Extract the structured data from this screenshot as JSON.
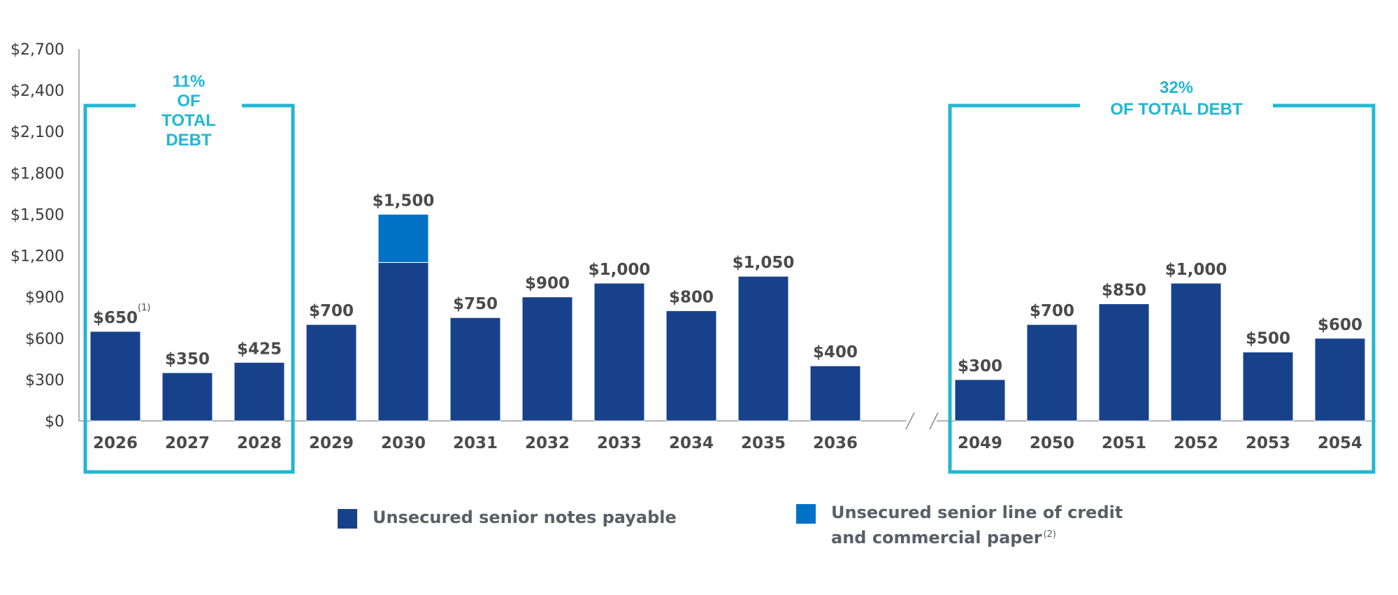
{
  "chart_data": {
    "type": "bar",
    "stacked": true,
    "currency": "$",
    "ylim": [
      0,
      2700
    ],
    "yticks": [
      0,
      300,
      600,
      900,
      1200,
      1500,
      1800,
      2100,
      2400,
      2700
    ],
    "ytick_labels": [
      "$0",
      "$300",
      "$600",
      "$900",
      "$1,200",
      "$1,500",
      "$1,800",
      "$2,100",
      "$2,400",
      "$2,700"
    ],
    "axis_break": "between 2036 and 2049",
    "categories": [
      "2026",
      "2027",
      "2028",
      "2029",
      "2030",
      "2031",
      "2032",
      "2033",
      "2034",
      "2035",
      "2036",
      "2049",
      "2050",
      "2051",
      "2052",
      "2053",
      "2054"
    ],
    "series": [
      {
        "name": "Unsecured senior notes payable",
        "color": "#17428b",
        "values": [
          650,
          350,
          425,
          700,
          1150,
          750,
          900,
          1000,
          800,
          1050,
          400,
          300,
          700,
          850,
          1000,
          500,
          600
        ]
      },
      {
        "name": "Unsecured senior line of credit and commercial paper",
        "color": "#0072c6",
        "values": [
          0,
          0,
          0,
          0,
          350,
          0,
          0,
          0,
          0,
          0,
          0,
          0,
          0,
          0,
          0,
          0,
          0
        ]
      }
    ],
    "data_labels": [
      "$650",
      "$350",
      "$425",
      "$700",
      "$1,500",
      "$750",
      "$900",
      "$1,000",
      "$800",
      "$1,050",
      "$400",
      "$300",
      "$700",
      "$850",
      "$1,000",
      "$500",
      "$600"
    ],
    "data_label_notes": [
      {
        "category": "2026",
        "note": "(1)"
      }
    ],
    "callouts": [
      {
        "categories": [
          "2026",
          "2027",
          "2028"
        ],
        "lines": [
          "11%",
          "OF",
          "TOTAL",
          "DEBT"
        ]
      },
      {
        "categories": [
          "2049",
          "2050",
          "2051",
          "2052",
          "2053",
          "2054"
        ],
        "lines": [
          "32%",
          "OF TOTAL DEBT"
        ]
      }
    ],
    "callout_color": "#22b7d3",
    "legend": [
      {
        "label": "Unsecured senior notes payable",
        "color": "#17428b",
        "note": ""
      },
      {
        "label_line1": "Unsecured senior line of credit",
        "label_line2": "and commercial paper",
        "color": "#0072c6",
        "note": "(2)"
      }
    ]
  }
}
